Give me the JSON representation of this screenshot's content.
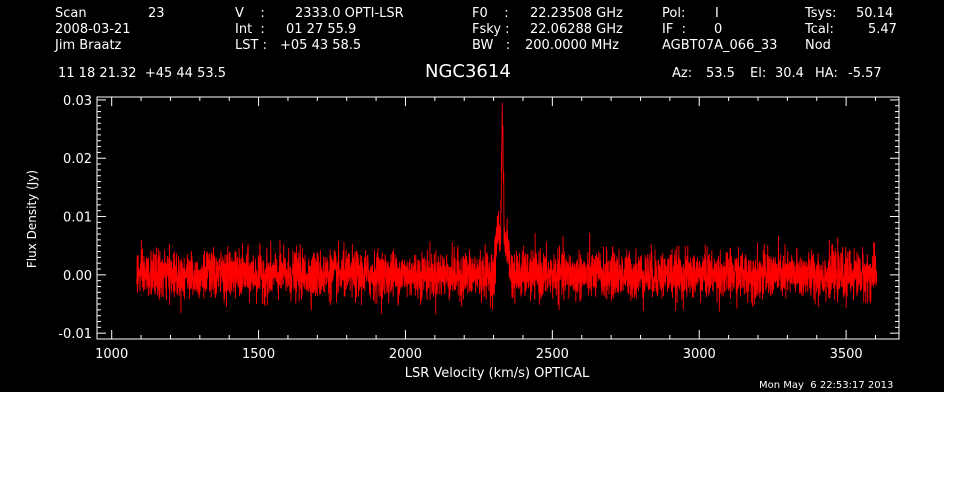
{
  "header": {
    "scan_label": "Scan",
    "scan_value": "23",
    "date": "2008-03-21",
    "observer": "Jim Braatz",
    "coords": "11 18 21.32  +45 44 53.5",
    "v_label": "V    :",
    "v_value": "2333.0 OPTI-LSR",
    "int_label": "Int  :",
    "int_value": "01 27 55.9",
    "lst_label": "LST :",
    "lst_value": "+05 43 58.5",
    "f0_label": "F0    :",
    "f0_value": "22.23508 GHz",
    "fsky_label": "Fsky :",
    "fsky_value": "22.06288 GHz",
    "bw_label": "BW   :",
    "bw_value": "200.0000 MHz",
    "pol_label": "Pol:",
    "pol_value": "I",
    "if_label": "IF  :",
    "if_value": "0",
    "project": "AGBT07A_066_33",
    "tsys_label": "Tsys:",
    "tsys_value": "50.14",
    "tcal_label": "Tcal:",
    "tcal_value": "5.47",
    "mode": "Nod",
    "source": "NGC3614",
    "az_label": "Az:",
    "az_value": "53.5",
    "el_label": "El:",
    "el_value": "30.4",
    "ha_label": "HA:",
    "ha_value": "-5.57"
  },
  "footer": {
    "timestamp": "Mon May  6 22:53:17 2013"
  },
  "colors": {
    "background": "#000000",
    "axes": "#ffffff",
    "series": "#ff0000",
    "page": "#ffffff"
  },
  "chart_data": {
    "type": "line",
    "xlabel": "LSR Velocity (km/s) OPTICAL",
    "ylabel": "Flux Density (Jy)",
    "xlim": [
      950,
      3680
    ],
    "ylim": [
      -0.011,
      0.0305
    ],
    "xticks": [
      1000,
      1500,
      2000,
      2500,
      3000,
      3500
    ],
    "xtick_labels": [
      "1000",
      "1500",
      "2000",
      "2500",
      "3000",
      "3500"
    ],
    "yticks": [
      -0.01,
      0.0,
      0.01,
      0.02,
      0.03
    ],
    "ytick_labels": [
      "-0.01",
      "0.00",
      "0.01",
      "0.02",
      "0.03"
    ],
    "grid": false,
    "series": [
      {
        "x_range": [
          1085,
          3605
        ],
        "noise_rms_jy": 0.002,
        "baseline_jy": 0.0,
        "peak": {
          "x": 2330,
          "y": 0.026,
          "width_kms": 8
        },
        "secondary_features": [
          {
            "x": 2315,
            "y": 0.008,
            "width_kms": 15
          },
          {
            "x": 2345,
            "y": 0.006,
            "width_kms": 15
          }
        ]
      }
    ]
  }
}
